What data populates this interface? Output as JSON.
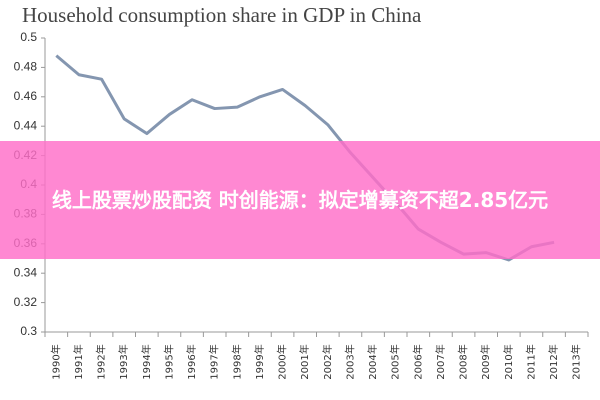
{
  "chart_data": {
    "type": "line",
    "title": "Household consumption share in GDP in China",
    "categories": [
      "1990年",
      "1991年",
      "1992年",
      "1993年",
      "1994年",
      "1995年",
      "1996年",
      "1997年",
      "1998年",
      "1999年",
      "2000年",
      "2001年",
      "2002年",
      "2003年",
      "2004年",
      "2005年",
      "2006年",
      "2007年",
      "2008年",
      "2009年",
      "2010年",
      "2011年",
      "2012年",
      "2013年"
    ],
    "values": [
      0.488,
      0.475,
      0.472,
      0.445,
      0.435,
      0.448,
      0.458,
      0.452,
      0.453,
      0.46,
      0.465,
      0.454,
      0.441,
      0.422,
      0.405,
      0.388,
      0.37,
      0.361,
      0.353,
      0.354,
      0.349,
      0.358,
      0.361,
      null
    ],
    "color": "#8496b0",
    "ylim": [
      0.3,
      0.5
    ],
    "yticks": [
      0.3,
      0.32,
      0.34,
      0.36,
      0.38,
      0.4,
      0.42,
      0.44,
      0.46,
      0.48,
      0.5
    ]
  },
  "overlay": {
    "text": "线上股票炒股配资 时创能源：拟定增募资不超2.85亿元"
  }
}
